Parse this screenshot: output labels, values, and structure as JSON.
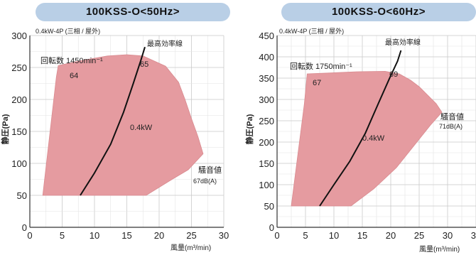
{
  "chart_data": [
    {
      "type": "area",
      "title": "100KSS-O<50Hz>",
      "subtitle": "0.4kW-4P (三相 / 屋外)",
      "xlabel": "風量(m³/min)",
      "ylabel": "静圧(Pa)",
      "xlim": [
        0,
        30
      ],
      "ylim": [
        0,
        300
      ],
      "xticks": [
        "0",
        "5",
        "10",
        "15",
        "20",
        "25",
        "30"
      ],
      "yticks": [
        "0",
        "50",
        "100",
        "150",
        "200",
        "250",
        "300"
      ],
      "grid": true,
      "region_color": "#e59ba0",
      "region_edge": "#d98a8f",
      "operating_region": [
        [
          2.0,
          50
        ],
        [
          4.1,
          235
        ],
        [
          4.4,
          253
        ],
        [
          8.0,
          261
        ],
        [
          12.0,
          268
        ],
        [
          15.0,
          270
        ],
        [
          17.5,
          268
        ],
        [
          21.0,
          252
        ],
        [
          23.0,
          227
        ],
        [
          24.0,
          200
        ],
        [
          25.0,
          170
        ],
        [
          26.0,
          142
        ],
        [
          26.8,
          115
        ],
        [
          24.5,
          90
        ],
        [
          22.0,
          75
        ],
        [
          18.0,
          50
        ]
      ],
      "efficiency_line": {
        "label": "最高効率線",
        "points": [
          [
            7.8,
            50
          ],
          [
            10.0,
            85
          ],
          [
            12.5,
            130
          ],
          [
            14.5,
            180
          ],
          [
            16.0,
            225
          ],
          [
            17.2,
            262
          ],
          [
            17.8,
            282
          ]
        ]
      },
      "annotations": {
        "speed": "回転数 1450min⁻¹",
        "noise_left": "64",
        "noise_right": "65",
        "power": "0.4kW",
        "noise_label": "騒音値",
        "noise_value": "67dB(A)"
      }
    },
    {
      "type": "area",
      "title": "100KSS-O<60Hz>",
      "subtitle": "0.4kW-4P (三相 / 屋外)",
      "xlabel": "風量(m³/min)",
      "ylabel": "静圧(Pa)",
      "xlim": [
        0,
        35
      ],
      "ylim": [
        0,
        450
      ],
      "xticks": [
        "0",
        "5",
        "10",
        "15",
        "20",
        "25",
        "30",
        "35"
      ],
      "yticks": [
        "0",
        "50",
        "100",
        "150",
        "200",
        "250",
        "300",
        "350",
        "400",
        "450"
      ],
      "grid": true,
      "region_color": "#e59ba0",
      "region_edge": "#d98a8f",
      "operating_region": [
        [
          2.5,
          50
        ],
        [
          4.8,
          290
        ],
        [
          5.3,
          360
        ],
        [
          9.0,
          362
        ],
        [
          14.0,
          365
        ],
        [
          19.0,
          366
        ],
        [
          21.5,
          360
        ],
        [
          23.5,
          345
        ],
        [
          25.0,
          330
        ],
        [
          26.5,
          310
        ],
        [
          28.0,
          290
        ],
        [
          29.0,
          270
        ],
        [
          27.0,
          240
        ],
        [
          24.0,
          190
        ],
        [
          21.0,
          140
        ],
        [
          17.0,
          90
        ],
        [
          13.0,
          50
        ]
      ],
      "efficiency_line": {
        "label": "最高効率線",
        "points": [
          [
            7.5,
            50
          ],
          [
            10.0,
            100
          ],
          [
            12.8,
            155
          ],
          [
            15.5,
            220
          ],
          [
            17.8,
            290
          ],
          [
            19.8,
            350
          ],
          [
            21.2,
            390
          ],
          [
            21.8,
            415
          ]
        ]
      },
      "annotations": {
        "speed": "回転数 1750min⁻¹",
        "noise_left": "67",
        "noise_right": "69",
        "power": "0.4kW",
        "noise_label": "騒音値",
        "noise_value": "71dB(A)"
      }
    }
  ]
}
